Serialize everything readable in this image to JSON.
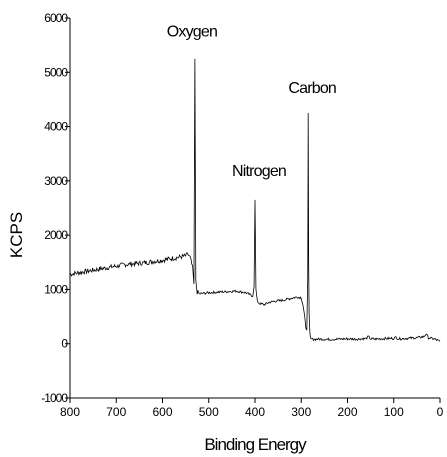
{
  "chart_data": {
    "type": "line",
    "xlabel": "Binding Energy",
    "ylabel": "KCPS",
    "xlim": [
      800,
      0
    ],
    "ylim": [
      -1000,
      6000
    ],
    "x_reversed": true,
    "grid": false,
    "legend": "none",
    "xticks": [
      800,
      700,
      600,
      500,
      400,
      300,
      200,
      100,
      0
    ],
    "yticks": [
      -1000,
      0,
      1000,
      2000,
      3000,
      4000,
      5000,
      6000
    ],
    "xtick_labels": [
      "800",
      "700",
      "600",
      "500",
      "400",
      "300",
      "200",
      "100",
      "0"
    ],
    "ytick_labels": [
      "-1000",
      "0",
      "1000",
      "2000",
      "3000",
      "4000",
      "5000",
      "6000"
    ],
    "annotations": [
      {
        "text": "Oxygen",
        "x": 532,
        "y": 5250
      },
      {
        "text": "Nitrogen",
        "x": 400,
        "y": 2650
      },
      {
        "text": "Carbon",
        "x": 285,
        "y": 4250
      }
    ],
    "series": [
      {
        "x": [
          800,
          760,
          720,
          680,
          640,
          600,
          580,
          560,
          550,
          545,
          540,
          535,
          532,
          530,
          528,
          525,
          520,
          500,
          480,
          460,
          440,
          420,
          410,
          405,
          402,
          400,
          398,
          395,
          390,
          380,
          370,
          360,
          350,
          340,
          330,
          320,
          310,
          300,
          296,
          292,
          290,
          288,
          286,
          285,
          284,
          283,
          282,
          281,
          280,
          275,
          260,
          240,
          220,
          200,
          180,
          160,
          155,
          150,
          140,
          120,
          100,
          95,
          90,
          70,
          50,
          35,
          30,
          25,
          20,
          10,
          0
        ],
        "y": [
          1280,
          1340,
          1400,
          1460,
          1490,
          1540,
          1570,
          1600,
          1620,
          1650,
          1580,
          1400,
          1100,
          5250,
          1150,
          950,
          920,
          940,
          950,
          960,
          970,
          940,
          900,
          880,
          1050,
          2650,
          1000,
          780,
          740,
          720,
          760,
          780,
          790,
          800,
          820,
          840,
          860,
          850,
          700,
          450,
          300,
          250,
          1200,
          4250,
          1500,
          600,
          300,
          150,
          90,
          80,
          85,
          80,
          85,
          90,
          85,
          95,
          130,
          90,
          85,
          95,
          100,
          120,
          90,
          100,
          110,
          130,
          180,
          110,
          100,
          80,
          40
        ]
      }
    ]
  }
}
